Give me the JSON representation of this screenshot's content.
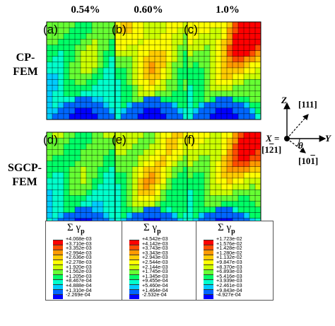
{
  "columns": [
    "0.54%",
    "0.60%",
    "1.0%"
  ],
  "rows": [
    "CP-\nFEM",
    "SGCP-\nFEM"
  ],
  "row_lines": [
    [
      "CP-",
      "FEM"
    ],
    [
      "SGCP-",
      "FEM"
    ]
  ],
  "panels": [
    "(a)",
    "(b)",
    "(c)",
    "(d)",
    "(e)",
    "(f)"
  ],
  "legend_symbol": "Σ γ",
  "legend_sub": "p",
  "legends": [
    {
      "values": [
        "+4.068e-03",
        "+3.710e-03",
        "+3.352e-03",
        "+2.994e-03",
        "+2.636e-03",
        "+2.278e-03",
        "+1.920e-03",
        "+1.562e-03",
        "+1.205e-03",
        "+8.467e-04",
        "+4.888e-04",
        "+1.310e-04",
        "-2.269e-04"
      ]
    },
    {
      "values": [
        "+4.542e-03",
        "+4.142e-03",
        "+3.743e-03",
        "+3.343e-03",
        "+2.943e-03",
        "+2.544e-03",
        "+2.144e-03",
        "+1.745e-03",
        "+1.345e-03",
        "+9.455e-04",
        "+5.460e-04",
        "+1.464e-04",
        "-2.532e-04"
      ]
    },
    {
      "values": [
        "+1.723e-02",
        "+1.576e-02",
        "+1.428e-02",
        "+1.280e-02",
        "+1.132e-02",
        "+9.847e-03",
        "+8.370e-03",
        "+6.893e-03",
        "+5.416e-03",
        "+3.939e-03",
        "+2.461e-03",
        "+9.843e-04",
        "-4.927e-04"
      ]
    }
  ],
  "colormap": [
    "#ff0000",
    "#ff4d00",
    "#ff9900",
    "#ffcc00",
    "#ffff00",
    "#ccff00",
    "#66ff33",
    "#00ff66",
    "#00ffcc",
    "#00ccff",
    "#0066ff",
    "#0000ff"
  ],
  "axes": {
    "z": "Z",
    "y": "Y",
    "x": "X =",
    "dir111": "[111]",
    "dir121": "[1 2 1]",
    "dir101": "[10 1]",
    "theta": "θ"
  }
}
